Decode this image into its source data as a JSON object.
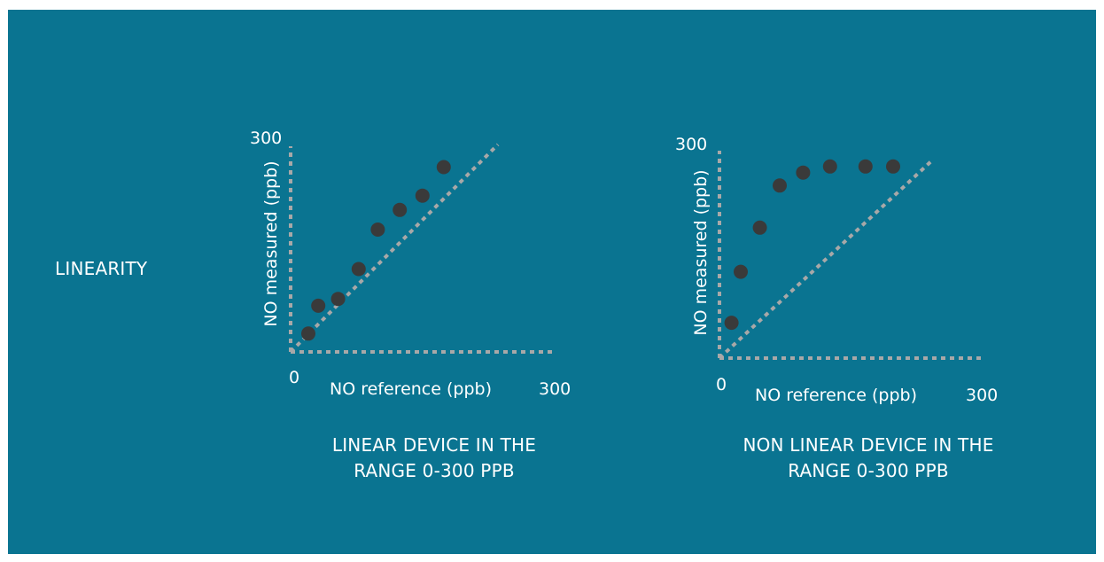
{
  "side_label": "LINEARITY",
  "colors": {
    "background": "#0a7491",
    "dots": "#3a3a3a",
    "dashes": "#a8a8a8",
    "text": "#ffffff"
  },
  "chart_data": [
    {
      "type": "scatter",
      "title": "",
      "caption_lines": [
        "LINEAR DEVICE IN THE",
        "RANGE 0-300 PPB"
      ],
      "xlabel": "NO reference (ppb)",
      "ylabel": "NO measured  (ppb)",
      "x_tick_labels": [
        "0",
        "300"
      ],
      "y_tick_labels": [
        "300"
      ],
      "xlim": [
        0,
        300
      ],
      "ylim": [
        0,
        300
      ],
      "grid": false,
      "reference_line": {
        "style": "dashed",
        "from": [
          0,
          0
        ],
        "to": [
          300,
          300
        ]
      },
      "points": [
        {
          "x": 25,
          "y": 27
        },
        {
          "x": 39,
          "y": 68
        },
        {
          "x": 67,
          "y": 78
        },
        {
          "x": 96,
          "y": 122
        },
        {
          "x": 123,
          "y": 180
        },
        {
          "x": 154,
          "y": 209
        },
        {
          "x": 186,
          "y": 230
        },
        {
          "x": 216,
          "y": 272
        }
      ]
    },
    {
      "type": "scatter",
      "title": "",
      "caption_lines": [
        "NON LINEAR DEVICE IN THE",
        "RANGE 0-300 PPB"
      ],
      "xlabel": "NO reference (ppb)",
      "ylabel": "NO measured  (ppb)",
      "x_tick_labels": [
        "0",
        "300"
      ],
      "y_tick_labels": [
        "300"
      ],
      "xlim": [
        0,
        300
      ],
      "ylim": [
        0,
        300
      ],
      "grid": false,
      "reference_line": {
        "style": "dashed",
        "from": [
          0,
          0
        ],
        "to": [
          260,
          300
        ]
      },
      "points": [
        {
          "x": 17,
          "y": 52
        },
        {
          "x": 30,
          "y": 127
        },
        {
          "x": 57,
          "y": 192
        },
        {
          "x": 85,
          "y": 254
        },
        {
          "x": 118,
          "y": 273
        },
        {
          "x": 156,
          "y": 282
        },
        {
          "x": 206,
          "y": 282
        },
        {
          "x": 245,
          "y": 282
        }
      ]
    }
  ]
}
